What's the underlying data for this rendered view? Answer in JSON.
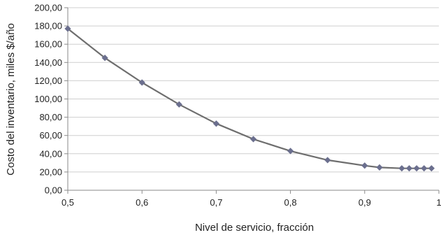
{
  "chart_data": {
    "type": "line",
    "title": "",
    "xlabel": "Nivel de servicio, fracción",
    "ylabel": "Costo del inventario, miles $/año",
    "xlim": [
      0.5,
      1.0
    ],
    "ylim": [
      0,
      200
    ],
    "x_ticks": [
      0.5,
      0.6,
      0.7,
      0.8,
      0.9,
      1.0
    ],
    "x_tick_labels": [
      "0,5",
      "0,6",
      "0,7",
      "0,8",
      "0,9",
      "1"
    ],
    "y_ticks": [
      0,
      20,
      40,
      60,
      80,
      100,
      120,
      140,
      160,
      180,
      200
    ],
    "y_tick_labels": [
      "0,00",
      "20,00",
      "40,00",
      "60,00",
      "80,00",
      "100,00",
      "120,00",
      "140,00",
      "160,00",
      "180,00",
      "200,00"
    ],
    "grid": true,
    "legend": "none",
    "series": [
      {
        "x": [
          0.5,
          0.55,
          0.6,
          0.65,
          0.7,
          0.75,
          0.8,
          0.85,
          0.9,
          0.92,
          0.95,
          0.96,
          0.97,
          0.98,
          0.99
        ],
        "y": [
          177,
          145,
          118,
          94,
          73,
          56,
          43,
          33,
          27,
          25,
          24,
          24,
          24,
          24,
          24
        ],
        "color": "#6b6f8e",
        "line_color": "#6e6e6e"
      }
    ]
  }
}
